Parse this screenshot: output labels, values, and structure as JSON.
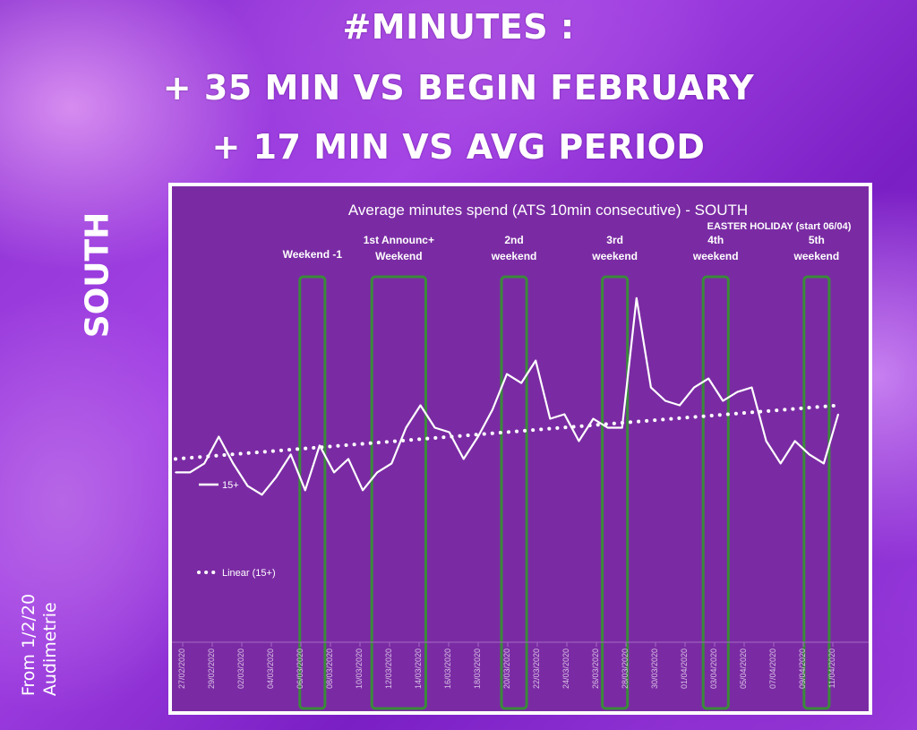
{
  "headline": {
    "line1": "#MINUTES :",
    "line2": "+ 35 MIN VS BEGIN FEBRUARY",
    "line3": "+ 17 MIN VS AVG PERIOD"
  },
  "region_label": "SOUTH",
  "source": {
    "line1": "From 1/2/20",
    "line2": "Audimetrie"
  },
  "colors": {
    "chart_bg": "#7a2ba3",
    "line": "#ffffff",
    "highlight_box": "#3a8a3a"
  },
  "chart_data": {
    "type": "line",
    "title": "Average minutes spend (ATS 10min consecutive) -  SOUTH",
    "note": "EASTER HOLIDAY (start 06/04)",
    "tick_labels": [
      "27/02/2020",
      "29/02/2020",
      "02/03/2020",
      "04/03/2020",
      "06/03/2020",
      "08/03/2020",
      "10/03/2020",
      "12/03/2020",
      "14/03/2020",
      "16/03/2020",
      "18/03/2020",
      "20/03/2020",
      "22/03/2020",
      "24/03/2020",
      "26/03/2020",
      "28/03/2020",
      "30/03/2020",
      "01/04/2020",
      "03/04/2020",
      "05/04/2020",
      "07/04/2020",
      "09/04/2020",
      "11/04/2020"
    ],
    "series": [
      {
        "name": "15+",
        "style": "solid",
        "values": [
          38,
          38,
          40,
          46,
          40,
          35,
          33,
          37,
          42,
          34,
          44,
          38,
          41,
          34,
          38,
          40,
          48,
          53,
          48,
          47,
          41,
          46,
          52,
          60,
          58,
          63,
          50,
          51,
          45,
          50,
          48,
          48,
          77,
          57,
          54,
          53,
          57,
          59,
          54,
          56,
          57,
          45,
          40,
          45,
          42,
          40,
          51
        ]
      },
      {
        "name": "Linear (15+)",
        "style": "dotted",
        "from": 41,
        "to": 53
      }
    ],
    "y_range": [
      0,
      100
    ],
    "annotations": [
      {
        "label": [
          "Weekend -1"
        ],
        "from_index": 9,
        "to_index": 10
      },
      {
        "label": [
          "1st Announc+",
          "Weekend"
        ],
        "from_index": 14,
        "to_index": 17
      },
      {
        "label": [
          "2nd",
          "weekend"
        ],
        "from_index": 23,
        "to_index": 24
      },
      {
        "label": [
          "3rd",
          "weekend"
        ],
        "from_index": 30,
        "to_index": 31
      },
      {
        "label": [
          "4th",
          "weekend"
        ],
        "from_index": 37,
        "to_index": 38
      },
      {
        "label": [
          "5th",
          "weekend"
        ],
        "from_index": 44,
        "to_index": 45
      }
    ],
    "legend": "left"
  }
}
